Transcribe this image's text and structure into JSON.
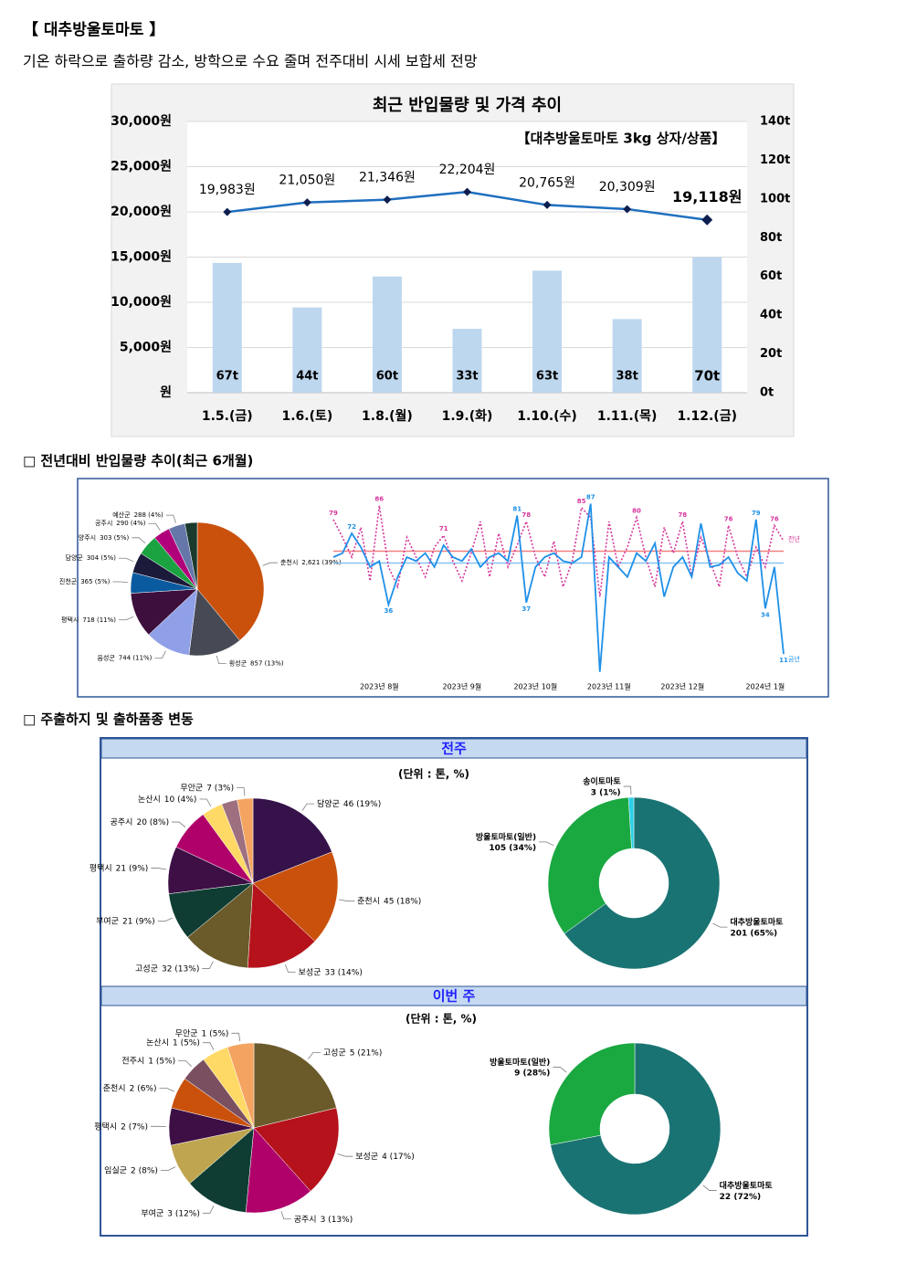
{
  "header": {
    "title": "【 대추방울토마토 】",
    "subtitle": "기온 하락으로 출하량 감소, 방학으로 수요 줄며 전주대비 시세 보합세 전망"
  },
  "sections": [
    "□ 전년대비 반입물량 추이(최근 6개월)",
    "□ 주출하지 및 출하품종 변동"
  ],
  "panels": [
    {
      "title": "전주",
      "unit": "(단위 : 톤, %)"
    },
    {
      "title": "이번 주",
      "unit": "(단위 : 톤, %)"
    }
  ],
  "chart_data": [
    {
      "type": "combo",
      "title": "최근 반입물량 및 가격 추이",
      "subtitle": "【대추방울토마토 3kg 상자/상품】",
      "categories": [
        "1.5.(금)",
        "1.6.(토)",
        "1.8.(월)",
        "1.9.(화)",
        "1.10.(수)",
        "1.11.(목)",
        "1.12.(금)"
      ],
      "series": [
        {
          "type": "line",
          "color": "#1f6fbf",
          "marker_color": "#0d1f4f",
          "values": [
            19983,
            21050,
            21346,
            22204,
            20765,
            20309,
            19118
          ],
          "value_labels": [
            "19,983원",
            "21,050원",
            "21,346원",
            "22,204원",
            "20,765원",
            "20,309원",
            "19,118원"
          ]
        },
        {
          "type": "bar",
          "axis": "y2",
          "color": "#bdd7ee",
          "values": [
            67,
            44,
            60,
            33,
            63,
            38,
            70
          ],
          "value_labels": [
            "67t",
            "44t",
            "60t",
            "33t",
            "63t",
            "38t",
            "70t"
          ]
        }
      ],
      "ylim": [
        0,
        30000
      ],
      "yticks": [
        {
          "value": 0,
          "label": "원"
        },
        {
          "value": 5000,
          "label": "5,000원"
        },
        {
          "value": 10000,
          "label": "10,000원"
        },
        {
          "value": 15000,
          "label": "15,000원"
        },
        {
          "value": 20000,
          "label": "20,000원"
        },
        {
          "value": 25000,
          "label": "25,000원"
        },
        {
          "value": 30000,
          "label": "30,000원"
        }
      ],
      "y2lim": [
        0,
        140
      ],
      "y2ticks": [
        {
          "value": 0,
          "label": "0t"
        },
        {
          "value": 20,
          "label": "20t"
        },
        {
          "value": 40,
          "label": "40t"
        },
        {
          "value": 60,
          "label": "60t"
        },
        {
          "value": 80,
          "label": "80t"
        },
        {
          "value": 100,
          "label": "100t"
        },
        {
          "value": 120,
          "label": "120t"
        },
        {
          "value": 140,
          "label": "140t"
        }
      ],
      "grid": true
    },
    {
      "type": "pie",
      "categories": [
        "춘천시",
        "횡성군",
        "음성군",
        "평택시",
        "진천군",
        "담양군",
        "양주시",
        "공주시",
        "예산군",
        null
      ],
      "values": [
        39,
        13,
        11,
        11,
        5,
        5,
        5,
        4,
        4,
        3
      ],
      "value_labels": [
        "2,621 (39%)",
        "857 (13%)",
        "744 (11%)",
        "718 (11%)",
        "365 (5%)",
        "304 (5%)",
        "303 (5%)",
        "290 (4%)",
        "288 (4%)",
        null
      ],
      "colors": [
        "#c9510c",
        "#474a54",
        "#8fa0e8",
        "#3c0f3c",
        "#0a5aa0",
        "#1c1a3a",
        "#1aa340",
        "#b0007a",
        "#6577a8",
        "#1b3a2e"
      ]
    },
    {
      "type": "line",
      "xlim": [
        0,
        49
      ],
      "xticks": [
        {
          "value": 5,
          "label": "2023년 8월"
        },
        {
          "value": 14,
          "label": "2023년 9월"
        },
        {
          "value": 22,
          "label": "2023년 10월"
        },
        {
          "value": 30,
          "label": "2023년 11월"
        },
        {
          "value": 38,
          "label": "2023년 12월"
        },
        {
          "value": 47,
          "label": "2024년 1월"
        }
      ],
      "ylim": [
        0,
        90
      ],
      "reference_lines": [
        {
          "value": 63,
          "color": "#f08080"
        },
        {
          "value": 57,
          "color": "#87c5f0"
        }
      ],
      "series": [
        {
          "name": "전년",
          "color": "#d6359b",
          "dash": "dotted",
          "values": [
            79,
            70,
            60,
            75,
            48,
            86,
            55,
            45,
            70,
            60,
            50,
            65,
            71,
            58,
            48,
            62,
            78,
            50,
            72,
            55,
            66,
            78,
            60,
            50,
            68,
            45,
            58,
            85,
            80,
            40,
            78,
            55,
            65,
            80,
            60,
            45,
            75,
            62,
            78,
            50,
            70,
            58,
            45,
            76,
            60,
            50,
            65,
            55,
            76,
            68
          ],
          "value_labels": [
            "79",
            null,
            null,
            null,
            null,
            "86",
            null,
            null,
            null,
            null,
            null,
            null,
            "71",
            null,
            null,
            null,
            null,
            null,
            null,
            null,
            null,
            "78",
            null,
            null,
            null,
            null,
            null,
            "85",
            null,
            null,
            null,
            null,
            null,
            "80",
            null,
            null,
            null,
            null,
            "78",
            null,
            null,
            null,
            null,
            "76",
            null,
            null,
            null,
            null,
            "76",
            null
          ]
        },
        {
          "name": "금년",
          "color": "#1e90e8",
          "dash": "solid",
          "values": [
            60,
            62,
            72,
            65,
            55,
            58,
            36,
            50,
            60,
            58,
            62,
            55,
            66,
            60,
            58,
            64,
            55,
            60,
            62,
            58,
            81,
            37,
            55,
            60,
            62,
            58,
            57,
            60,
            87,
            2,
            60,
            55,
            50,
            62,
            58,
            67,
            40,
            55,
            60,
            50,
            77,
            55,
            56,
            60,
            52,
            48,
            79,
            34,
            55,
            11
          ],
          "value_labels": [
            null,
            null,
            "72",
            null,
            null,
            null,
            "36",
            null,
            null,
            null,
            null,
            null,
            null,
            null,
            null,
            null,
            null,
            null,
            null,
            null,
            "81",
            "37",
            null,
            null,
            null,
            null,
            null,
            null,
            "87",
            null,
            null,
            null,
            null,
            null,
            null,
            null,
            null,
            null,
            null,
            null,
            null,
            null,
            null,
            null,
            null,
            null,
            "79",
            "34",
            null,
            "11"
          ]
        }
      ]
    },
    {
      "type": "pie",
      "categories": [
        "담양군",
        "춘천시",
        "보성군",
        "고성군",
        "부여군",
        "평택시",
        "공주시",
        "논산시",
        null,
        "무안군"
      ],
      "values": [
        19,
        18,
        14,
        13,
        9,
        9,
        8,
        4,
        3,
        3
      ],
      "value_labels": [
        "46 (19%)",
        "45 (18%)",
        "33 (14%)",
        "32 (13%)",
        "21 (9%)",
        "21 (9%)",
        "20 (8%)",
        "10 (4%)",
        null,
        "7 (3%)"
      ],
      "colors": [
        "#35124a",
        "#c9510c",
        "#b5121b",
        "#6b5a2a",
        "#0f3d33",
        "#3d0f45",
        "#b0006a",
        "#ffd966",
        "#9e6f7e",
        "#f4a460"
      ]
    },
    {
      "type": "donut",
      "categories": [
        "대추방울토마토",
        "방울토마토(일반)",
        "송이토마토"
      ],
      "values": [
        65,
        34,
        1
      ],
      "value_labels": [
        "201 (65%)",
        "105 (34%)",
        "3 (1%)"
      ],
      "colors": [
        "#1a7373",
        "#1aa841",
        "#2ad0e8"
      ]
    },
    {
      "type": "pie",
      "categories": [
        "고성군",
        "보성군",
        "공주시",
        "부여군",
        "임실군",
        "평택시",
        "춘천시",
        "전주시",
        "논산시",
        "무안군"
      ],
      "values": [
        21,
        17,
        13,
        12,
        8,
        7,
        6,
        5,
        5,
        5
      ],
      "value_labels": [
        "5 (21%)",
        "4 (17%)",
        "3 (13%)",
        "3 (12%)",
        "2 (8%)",
        "2 (7%)",
        "2 (6%)",
        "1 (5%)",
        "1 (5%)",
        "1 (5%)"
      ],
      "colors": [
        "#6b5a2a",
        "#b5121b",
        "#b0006a",
        "#0f3d33",
        "#bfa54f",
        "#3d0f45",
        "#c9510c",
        "#7a5060",
        "#ffd966",
        "#f4a460"
      ]
    },
    {
      "type": "donut",
      "categories": [
        "대추방울토마토",
        "방울토마토(일반)"
      ],
      "values": [
        72,
        28
      ],
      "value_labels": [
        "22 (72%)",
        "9 (28%)"
      ],
      "colors": [
        "#1a7373",
        "#1aa841"
      ]
    }
  ]
}
